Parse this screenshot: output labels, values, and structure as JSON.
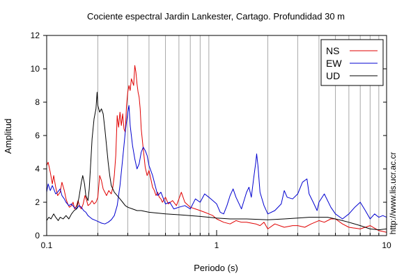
{
  "chart_data": {
    "type": "line",
    "title": "Cociente espectral Jardin Lankester, Cartago. Profundidad 30 m",
    "xlabel": "Periodo (s)",
    "ylabel": "Amplitud",
    "xscale": "log",
    "xlim": [
      0.1,
      10
    ],
    "ylim": [
      0,
      12
    ],
    "x_ticks": [
      {
        "v": 0.1,
        "label": "0.1"
      },
      {
        "v": 1,
        "label": "1"
      },
      {
        "v": 10,
        "label": "10"
      }
    ],
    "y_ticks": [
      0,
      2,
      4,
      6,
      8,
      10,
      12
    ],
    "grid": "vertical-minor",
    "legend_position": "top-right",
    "series": [
      {
        "name": "NS",
        "color": "#e00000",
        "points": [
          [
            0.1,
            4.2
          ],
          [
            0.102,
            4.4
          ],
          [
            0.105,
            3.8
          ],
          [
            0.108,
            3.1
          ],
          [
            0.11,
            3.6
          ],
          [
            0.113,
            2.9
          ],
          [
            0.116,
            2.4
          ],
          [
            0.12,
            2.6
          ],
          [
            0.123,
            3.2
          ],
          [
            0.127,
            2.7
          ],
          [
            0.13,
            2.2
          ],
          [
            0.133,
            1.9
          ],
          [
            0.136,
            1.7
          ],
          [
            0.14,
            1.8
          ],
          [
            0.143,
            2.0
          ],
          [
            0.146,
            1.6
          ],
          [
            0.15,
            1.8
          ],
          [
            0.153,
            2.1
          ],
          [
            0.157,
            1.7
          ],
          [
            0.16,
            1.6
          ],
          [
            0.164,
            1.9
          ],
          [
            0.168,
            2.4
          ],
          [
            0.172,
            2.1
          ],
          [
            0.175,
            1.8
          ],
          [
            0.18,
            1.9
          ],
          [
            0.185,
            2.1
          ],
          [
            0.19,
            1.9
          ],
          [
            0.195,
            2.0
          ],
          [
            0.2,
            2.3
          ],
          [
            0.205,
            3.6
          ],
          [
            0.21,
            3.3
          ],
          [
            0.215,
            2.8
          ],
          [
            0.22,
            2.6
          ],
          [
            0.225,
            2.4
          ],
          [
            0.232,
            2.7
          ],
          [
            0.24,
            2.5
          ],
          [
            0.245,
            2.9
          ],
          [
            0.25,
            3.6
          ],
          [
            0.255,
            4.8
          ],
          [
            0.26,
            7.2
          ],
          [
            0.265,
            6.5
          ],
          [
            0.27,
            7.4
          ],
          [
            0.275,
            6.6
          ],
          [
            0.28,
            7.3
          ],
          [
            0.285,
            6.4
          ],
          [
            0.29,
            6.2
          ],
          [
            0.295,
            7.8
          ],
          [
            0.3,
            8.6
          ],
          [
            0.305,
            9.0
          ],
          [
            0.31,
            8.7
          ],
          [
            0.315,
            9.4
          ],
          [
            0.32,
            9.2
          ],
          [
            0.325,
            9.0
          ],
          [
            0.33,
            10.2
          ],
          [
            0.335,
            9.8
          ],
          [
            0.34,
            9.1
          ],
          [
            0.345,
            8.6
          ],
          [
            0.35,
            8.3
          ],
          [
            0.355,
            7.6
          ],
          [
            0.36,
            6.4
          ],
          [
            0.37,
            5.2
          ],
          [
            0.38,
            4.1
          ],
          [
            0.39,
            3.6
          ],
          [
            0.4,
            3.9
          ],
          [
            0.41,
            3.4
          ],
          [
            0.42,
            2.9
          ],
          [
            0.43,
            2.7
          ],
          [
            0.44,
            2.4
          ],
          [
            0.45,
            2.6
          ],
          [
            0.46,
            2.3
          ],
          [
            0.47,
            2.2
          ],
          [
            0.48,
            2.0
          ],
          [
            0.5,
            2.3
          ],
          [
            0.52,
            1.9
          ],
          [
            0.55,
            2.1
          ],
          [
            0.58,
            1.8
          ],
          [
            0.6,
            2.2
          ],
          [
            0.62,
            2.6
          ],
          [
            0.65,
            2.0
          ],
          [
            0.7,
            1.7
          ],
          [
            0.75,
            1.6
          ],
          [
            0.8,
            1.5
          ],
          [
            0.85,
            1.4
          ],
          [
            0.9,
            1.3
          ],
          [
            0.95,
            1.2
          ],
          [
            1.0,
            1.0
          ],
          [
            1.1,
            0.8
          ],
          [
            1.2,
            0.7
          ],
          [
            1.3,
            0.9
          ],
          [
            1.4,
            0.8
          ],
          [
            1.5,
            0.8
          ],
          [
            1.7,
            0.7
          ],
          [
            1.8,
            0.6
          ],
          [
            1.9,
            0.8
          ],
          [
            2.0,
            0.4
          ],
          [
            2.2,
            0.7
          ],
          [
            2.5,
            0.5
          ],
          [
            2.8,
            0.6
          ],
          [
            3.0,
            0.6
          ],
          [
            3.3,
            0.5
          ],
          [
            3.6,
            0.7
          ],
          [
            4.0,
            0.9
          ],
          [
            4.3,
            0.8
          ],
          [
            4.7,
            1.0
          ],
          [
            5.0,
            1.0
          ],
          [
            5.5,
            0.7
          ],
          [
            6.0,
            0.5
          ],
          [
            7.0,
            0.4
          ],
          [
            8.0,
            0.6
          ],
          [
            9.0,
            0.3
          ],
          [
            10,
            0.2
          ]
        ]
      },
      {
        "name": "EW",
        "color": "#0000d0",
        "points": [
          [
            0.1,
            2.6
          ],
          [
            0.102,
            3.1
          ],
          [
            0.105,
            2.7
          ],
          [
            0.108,
            3.0
          ],
          [
            0.11,
            2.8
          ],
          [
            0.113,
            2.5
          ],
          [
            0.116,
            2.6
          ],
          [
            0.12,
            2.8
          ],
          [
            0.123,
            2.4
          ],
          [
            0.127,
            2.2
          ],
          [
            0.13,
            2.0
          ],
          [
            0.135,
            1.8
          ],
          [
            0.14,
            1.9
          ],
          [
            0.145,
            1.7
          ],
          [
            0.15,
            1.6
          ],
          [
            0.155,
            1.8
          ],
          [
            0.16,
            1.7
          ],
          [
            0.165,
            1.5
          ],
          [
            0.17,
            1.4
          ],
          [
            0.175,
            1.2
          ],
          [
            0.18,
            1.1
          ],
          [
            0.185,
            1.0
          ],
          [
            0.19,
            0.95
          ],
          [
            0.2,
            0.85
          ],
          [
            0.21,
            0.75
          ],
          [
            0.22,
            0.7
          ],
          [
            0.23,
            0.8
          ],
          [
            0.24,
            0.95
          ],
          [
            0.25,
            1.2
          ],
          [
            0.26,
            1.8
          ],
          [
            0.27,
            3.0
          ],
          [
            0.28,
            4.6
          ],
          [
            0.29,
            6.2
          ],
          [
            0.3,
            7.4
          ],
          [
            0.305,
            7.8
          ],
          [
            0.31,
            6.6
          ],
          [
            0.32,
            5.4
          ],
          [
            0.33,
            4.6
          ],
          [
            0.34,
            4.0
          ],
          [
            0.35,
            4.3
          ],
          [
            0.36,
            5.0
          ],
          [
            0.37,
            5.3
          ],
          [
            0.38,
            5.1
          ],
          [
            0.39,
            4.8
          ],
          [
            0.4,
            4.2
          ],
          [
            0.41,
            3.9
          ],
          [
            0.42,
            3.6
          ],
          [
            0.43,
            3.2
          ],
          [
            0.44,
            2.8
          ],
          [
            0.45,
            2.4
          ],
          [
            0.47,
            2.6
          ],
          [
            0.5,
            1.9
          ],
          [
            0.53,
            2.0
          ],
          [
            0.56,
            1.6
          ],
          [
            0.6,
            1.7
          ],
          [
            0.65,
            1.8
          ],
          [
            0.7,
            1.6
          ],
          [
            0.75,
            2.2
          ],
          [
            0.8,
            2.0
          ],
          [
            0.85,
            2.5
          ],
          [
            0.9,
            2.3
          ],
          [
            0.95,
            2.1
          ],
          [
            1.0,
            1.9
          ],
          [
            1.05,
            1.4
          ],
          [
            1.1,
            1.3
          ],
          [
            1.15,
            1.8
          ],
          [
            1.2,
            2.4
          ],
          [
            1.25,
            2.8
          ],
          [
            1.3,
            2.3
          ],
          [
            1.4,
            1.6
          ],
          [
            1.5,
            2.6
          ],
          [
            1.55,
            2.9
          ],
          [
            1.6,
            2.3
          ],
          [
            1.65,
            3.4
          ],
          [
            1.7,
            4.4
          ],
          [
            1.72,
            4.9
          ],
          [
            1.75,
            4.2
          ],
          [
            1.8,
            2.6
          ],
          [
            1.9,
            1.8
          ],
          [
            2.0,
            1.3
          ],
          [
            2.2,
            1.5
          ],
          [
            2.4,
            1.9
          ],
          [
            2.5,
            2.7
          ],
          [
            2.6,
            2.3
          ],
          [
            2.8,
            2.2
          ],
          [
            3.0,
            2.5
          ],
          [
            3.2,
            3.2
          ],
          [
            3.4,
            3.4
          ],
          [
            3.5,
            2.5
          ],
          [
            3.7,
            2.0
          ],
          [
            3.9,
            1.5
          ],
          [
            4.0,
            2.0
          ],
          [
            4.3,
            2.5
          ],
          [
            4.7,
            1.7
          ],
          [
            5.0,
            1.3
          ],
          [
            5.5,
            1.0
          ],
          [
            6.0,
            1.3
          ],
          [
            6.5,
            1.7
          ],
          [
            7.0,
            2.0
          ],
          [
            7.5,
            1.5
          ],
          [
            8.0,
            1.0
          ],
          [
            8.5,
            1.3
          ],
          [
            9.0,
            1.1
          ],
          [
            9.5,
            1.2
          ],
          [
            10,
            1.1
          ]
        ]
      },
      {
        "name": "UD",
        "color": "#000000",
        "points": [
          [
            0.1,
            0.9
          ],
          [
            0.103,
            1.1
          ],
          [
            0.106,
            1.0
          ],
          [
            0.11,
            1.3
          ],
          [
            0.113,
            1.1
          ],
          [
            0.117,
            0.9
          ],
          [
            0.12,
            1.1
          ],
          [
            0.125,
            1.0
          ],
          [
            0.13,
            1.2
          ],
          [
            0.135,
            1.0
          ],
          [
            0.14,
            1.3
          ],
          [
            0.145,
            1.5
          ],
          [
            0.15,
            1.6
          ],
          [
            0.155,
            2.3
          ],
          [
            0.16,
            3.2
          ],
          [
            0.163,
            3.6
          ],
          [
            0.167,
            3.1
          ],
          [
            0.17,
            2.4
          ],
          [
            0.175,
            2.1
          ],
          [
            0.178,
            2.8
          ],
          [
            0.182,
            4.5
          ],
          [
            0.185,
            5.8
          ],
          [
            0.19,
            7.0
          ],
          [
            0.195,
            7.6
          ],
          [
            0.198,
            8.6
          ],
          [
            0.2,
            7.8
          ],
          [
            0.205,
            7.4
          ],
          [
            0.21,
            7.6
          ],
          [
            0.215,
            7.3
          ],
          [
            0.22,
            6.4
          ],
          [
            0.225,
            5.4
          ],
          [
            0.23,
            4.4
          ],
          [
            0.235,
            3.6
          ],
          [
            0.24,
            3.0
          ],
          [
            0.25,
            2.6
          ],
          [
            0.26,
            2.4
          ],
          [
            0.27,
            2.2
          ],
          [
            0.28,
            2.0
          ],
          [
            0.29,
            1.8
          ],
          [
            0.3,
            1.7
          ],
          [
            0.32,
            1.6
          ],
          [
            0.34,
            1.5
          ],
          [
            0.36,
            1.5
          ],
          [
            0.38,
            1.45
          ],
          [
            0.4,
            1.4
          ],
          [
            0.45,
            1.35
          ],
          [
            0.5,
            1.3
          ],
          [
            0.6,
            1.25
          ],
          [
            0.7,
            1.2
          ],
          [
            0.8,
            1.15
          ],
          [
            0.9,
            1.1
          ],
          [
            1.0,
            1.05
          ],
          [
            1.2,
            1.0
          ],
          [
            1.5,
            1.0
          ],
          [
            2.0,
            0.95
          ],
          [
            2.5,
            1.0
          ],
          [
            3.0,
            1.05
          ],
          [
            3.5,
            1.1
          ],
          [
            4.0,
            1.1
          ],
          [
            4.5,
            1.1
          ],
          [
            5.0,
            1.0
          ],
          [
            5.5,
            0.9
          ],
          [
            6.0,
            0.8
          ],
          [
            7.0,
            0.6
          ],
          [
            8.0,
            0.4
          ],
          [
            9.0,
            0.35
          ],
          [
            10,
            0.4
          ]
        ]
      }
    ]
  },
  "side_text": "http://www.lis.ucr.ac.cr",
  "colors": {
    "grid": "#a8a8a8",
    "frame": "#000000",
    "background": "#ffffff"
  }
}
